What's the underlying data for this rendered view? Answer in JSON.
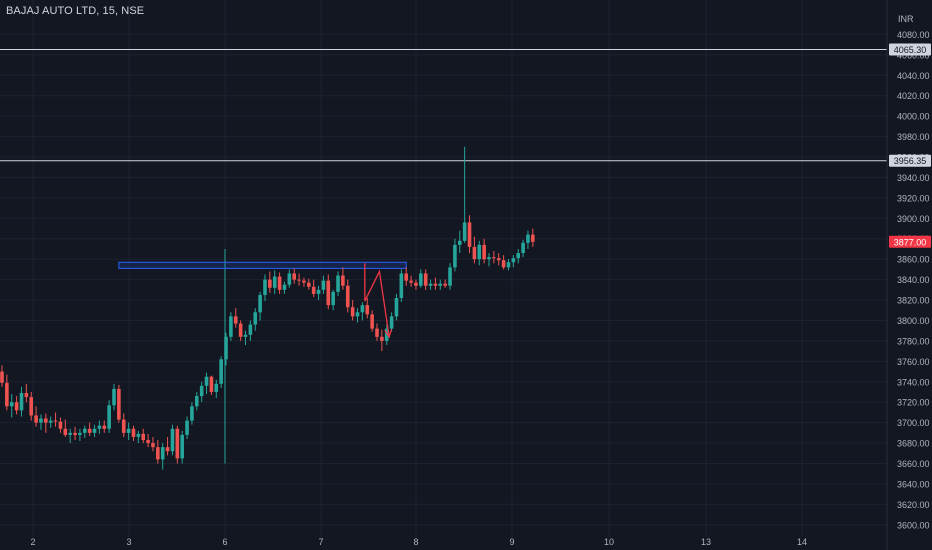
{
  "header": {
    "symbol_line": "BAJAJ AUTO LTD, 15, NSE"
  },
  "colors": {
    "background": "#131722",
    "up": "#26a69a",
    "down": "#ef5350",
    "grid": "#1e2230",
    "axis_text": "#b2b5be",
    "hline": "#d1d4dc",
    "zone_border": "#2962ff",
    "price_label_bg": "#f23645",
    "arrow": "#f23645"
  },
  "chart_data": {
    "type": "candlestick",
    "currency": "INR",
    "y_range": [
      3590,
      4100
    ],
    "y_ticks": [
      "3600.00",
      "3620.00",
      "3640.00",
      "3660.00",
      "3680.00",
      "3700.00",
      "3720.00",
      "3740.00",
      "3760.00",
      "3780.00",
      "3800.00",
      "3820.00",
      "3840.00",
      "3860.00",
      "3880.00",
      "3900.00",
      "3920.00",
      "3940.00",
      "3960.00",
      "3980.00",
      "4000.00",
      "4020.00",
      "4040.00",
      "4060.00",
      "4080.00"
    ],
    "x_ticks": [
      "2",
      "3",
      "6",
      "7",
      "8",
      "9",
      "10",
      "13",
      "14"
    ],
    "horizontal_lines": [
      {
        "price": 4065.3,
        "label": "4065.30"
      },
      {
        "price": 3956.35,
        "label": "3956.35"
      }
    ],
    "last_price": {
      "price": 3877.0,
      "label": "3877.00"
    },
    "zone": {
      "from_bar": 24,
      "to_bar": 83,
      "price_low": 3851,
      "price_high": 3857
    },
    "projection_arrow": [
      {
        "bar": 74.5,
        "price": 3856
      },
      {
        "bar": 74.5,
        "price": 3819
      },
      {
        "bar": 77.5,
        "price": 3848
      },
      {
        "bar": 79.5,
        "price": 3784
      }
    ],
    "candles": [
      [
        3750,
        3756,
        3735,
        3739
      ],
      [
        3739,
        3747,
        3712,
        3716
      ],
      [
        3716,
        3728,
        3705,
        3720
      ],
      [
        3720,
        3726,
        3708,
        3712
      ],
      [
        3712,
        3735,
        3706,
        3729
      ],
      [
        3729,
        3738,
        3720,
        3725
      ],
      [
        3725,
        3730,
        3702,
        3707
      ],
      [
        3707,
        3716,
        3696,
        3700
      ],
      [
        3700,
        3708,
        3693,
        3704
      ],
      [
        3704,
        3709,
        3690,
        3700
      ],
      [
        3700,
        3706,
        3695,
        3702
      ],
      [
        3702,
        3710,
        3696,
        3701
      ],
      [
        3701,
        3705,
        3690,
        3694
      ],
      [
        3694,
        3703,
        3686,
        3688
      ],
      [
        3688,
        3694,
        3680,
        3690
      ],
      [
        3690,
        3696,
        3683,
        3688
      ],
      [
        3688,
        3694,
        3682,
        3690
      ],
      [
        3690,
        3697,
        3685,
        3694
      ],
      [
        3694,
        3700,
        3687,
        3690
      ],
      [
        3690,
        3698,
        3686,
        3694
      ],
      [
        3694,
        3702,
        3689,
        3697
      ],
      [
        3697,
        3702,
        3690,
        3694
      ],
      [
        3694,
        3722,
        3690,
        3717
      ],
      [
        3717,
        3738,
        3712,
        3733
      ],
      [
        3733,
        3737,
        3700,
        3703
      ],
      [
        3703,
        3709,
        3686,
        3690
      ],
      [
        3690,
        3700,
        3683,
        3694
      ],
      [
        3694,
        3697,
        3682,
        3686
      ],
      [
        3686,
        3692,
        3680,
        3689
      ],
      [
        3689,
        3694,
        3680,
        3683
      ],
      [
        3683,
        3689,
        3676,
        3680
      ],
      [
        3680,
        3686,
        3672,
        3676
      ],
      [
        3676,
        3683,
        3660,
        3664
      ],
      [
        3664,
        3680,
        3654,
        3676
      ],
      [
        3676,
        3686,
        3668,
        3672
      ],
      [
        3672,
        3698,
        3668,
        3694
      ],
      [
        3694,
        3697,
        3660,
        3665
      ],
      [
        3665,
        3692,
        3660,
        3688
      ],
      [
        3688,
        3706,
        3684,
        3702
      ],
      [
        3702,
        3720,
        3698,
        3716
      ],
      [
        3716,
        3730,
        3712,
        3726
      ],
      [
        3726,
        3740,
        3720,
        3736
      ],
      [
        3736,
        3749,
        3728,
        3745
      ],
      [
        3745,
        3746,
        3727,
        3730
      ],
      [
        3730,
        3742,
        3724,
        3738
      ],
      [
        3738,
        3765,
        3734,
        3762
      ],
      [
        3762,
        3788,
        3756,
        3784
      ],
      [
        3784,
        3808,
        3780,
        3804
      ],
      [
        3804,
        3812,
        3793,
        3797
      ],
      [
        3797,
        3800,
        3780,
        3784
      ],
      [
        3784,
        3790,
        3776,
        3786
      ],
      [
        3786,
        3800,
        3780,
        3796
      ],
      [
        3796,
        3812,
        3790,
        3808
      ],
      [
        3808,
        3828,
        3800,
        3825
      ],
      [
        3825,
        3845,
        3819,
        3840
      ],
      [
        3840,
        3848,
        3827,
        3832
      ],
      [
        3832,
        3849,
        3826,
        3843
      ],
      [
        3843,
        3847,
        3826,
        3830
      ],
      [
        3830,
        3838,
        3826,
        3835
      ],
      [
        3835,
        3850,
        3832,
        3846
      ],
      [
        3846,
        3851,
        3836,
        3840
      ],
      [
        3840,
        3846,
        3834,
        3839
      ],
      [
        3839,
        3842,
        3833,
        3837
      ],
      [
        3837,
        3841,
        3830,
        3833
      ],
      [
        3833,
        3840,
        3823,
        3826
      ],
      [
        3826,
        3834,
        3820,
        3830
      ],
      [
        3830,
        3844,
        3826,
        3839
      ],
      [
        3839,
        3845,
        3811,
        3815
      ],
      [
        3815,
        3830,
        3810,
        3828
      ],
      [
        3828,
        3848,
        3824,
        3844
      ],
      [
        3844,
        3852,
        3830,
        3834
      ],
      [
        3834,
        3840,
        3808,
        3813
      ],
      [
        3813,
        3820,
        3800,
        3804
      ],
      [
        3804,
        3812,
        3798,
        3808
      ],
      [
        3808,
        3818,
        3800,
        3815
      ],
      [
        3815,
        3822,
        3802,
        3806
      ],
      [
        3806,
        3810,
        3789,
        3792
      ],
      [
        3792,
        3797,
        3780,
        3784
      ],
      [
        3784,
        3791,
        3770,
        3780
      ],
      [
        3780,
        3796,
        3776,
        3792
      ],
      [
        3792,
        3808,
        3789,
        3804
      ],
      [
        3804,
        3826,
        3800,
        3822
      ],
      [
        3822,
        3850,
        3818,
        3846
      ],
      [
        3846,
        3852,
        3834,
        3839
      ],
      [
        3839,
        3844,
        3833,
        3837
      ],
      [
        3837,
        3840,
        3830,
        3834
      ],
      [
        3834,
        3850,
        3832,
        3846
      ],
      [
        3846,
        3850,
        3830,
        3834
      ],
      [
        3834,
        3840,
        3830,
        3836
      ],
      [
        3836,
        3842,
        3830,
        3834
      ],
      [
        3834,
        3840,
        3830,
        3836
      ],
      [
        3836,
        3840,
        3832,
        3834
      ],
      [
        3834,
        3856,
        3830,
        3852
      ],
      [
        3852,
        3880,
        3848,
        3874
      ],
      [
        3874,
        3888,
        3866,
        3878
      ],
      [
        3878,
        3970,
        3876,
        3896
      ],
      [
        3896,
        3903,
        3866,
        3872
      ],
      [
        3872,
        3882,
        3856,
        3860
      ],
      [
        3860,
        3878,
        3854,
        3874
      ],
      [
        3874,
        3880,
        3856,
        3860
      ],
      [
        3860,
        3866,
        3853,
        3862
      ],
      [
        3862,
        3868,
        3856,
        3861
      ],
      [
        3861,
        3866,
        3854,
        3859
      ],
      [
        3859,
        3864,
        3850,
        3852
      ],
      [
        3852,
        3860,
        3849,
        3857
      ],
      [
        3857,
        3864,
        3852,
        3861
      ],
      [
        3861,
        3870,
        3856,
        3866
      ],
      [
        3866,
        3879,
        3862,
        3876
      ],
      [
        3876,
        3888,
        3870,
        3884
      ],
      [
        3884,
        3890,
        3872,
        3877
      ]
    ]
  }
}
